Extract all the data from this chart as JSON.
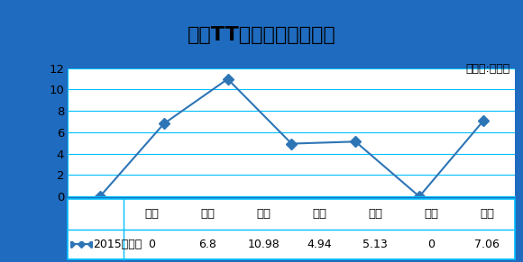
{
  "title": "奥迪TT各地区优惠对比图",
  "unit_label": "（单位:万元）",
  "categories": [
    "北京",
    "上海",
    "长沙",
    "广州",
    "佛山",
    "东莞",
    "成都"
  ],
  "values": [
    0,
    6.8,
    10.98,
    4.94,
    5.13,
    0,
    7.06
  ],
  "legend_label": "2015款优惠",
  "table_values": [
    "0",
    "6.8",
    "10.98",
    "4.94",
    "5.13",
    "0",
    "7.06"
  ],
  "ylim": [
    0,
    12
  ],
  "yticks": [
    0,
    2,
    4,
    6,
    8,
    10,
    12
  ],
  "line_color": "#2E75B6",
  "marker": "D",
  "marker_size": 6,
  "plot_bg_color": "#FFFFFF",
  "fig_bg_color": "#FFFFFF",
  "outer_border_color": "#1F6BBF",
  "grid_color": "#00BFFF",
  "table_border_color": "#00BFFF",
  "title_fontsize": 16,
  "tick_fontsize": 9.5,
  "unit_fontsize": 9,
  "legend_fontsize": 9,
  "table_fontsize": 9
}
